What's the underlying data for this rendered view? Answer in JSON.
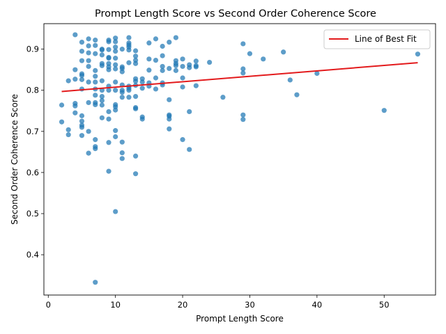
{
  "chart_data": {
    "type": "scatter",
    "title": "Prompt Length Score vs Second Order Coherence Score",
    "xlabel": "Prompt Length Score",
    "ylabel": "Second Order Coherence Score",
    "xlim": [
      -0.65,
      57.65
    ],
    "ylim": [
      0.302,
      0.962
    ],
    "xticks": [
      0,
      10,
      20,
      30,
      40,
      50
    ],
    "yticks": [
      0.4,
      0.5,
      0.6,
      0.7,
      0.8,
      0.9
    ],
    "grid": false,
    "legend_position": "top-right",
    "colors": {
      "points": "#1f77b4",
      "fit_line": "#e31a1c"
    },
    "series": [
      {
        "points": [
          [
            2,
            0.764
          ],
          [
            2,
            0.723
          ],
          [
            3,
            0.823
          ],
          [
            3,
            0.704
          ],
          [
            3,
            0.692
          ],
          [
            4,
            0.935
          ],
          [
            4,
            0.85
          ],
          [
            4,
            0.827
          ],
          [
            4,
            0.768
          ],
          [
            4,
            0.762
          ],
          [
            4,
            0.745
          ],
          [
            5,
            0.917
          ],
          [
            5,
            0.895
          ],
          [
            5,
            0.872
          ],
          [
            5,
            0.84
          ],
          [
            5,
            0.836
          ],
          [
            5,
            0.826
          ],
          [
            5,
            0.803
          ],
          [
            5,
            0.738
          ],
          [
            5,
            0.725
          ],
          [
            5,
            0.715
          ],
          [
            5,
            0.71
          ],
          [
            5,
            0.69
          ],
          [
            6,
            0.925
          ],
          [
            6,
            0.908
          ],
          [
            6,
            0.891
          ],
          [
            6,
            0.872
          ],
          [
            6,
            0.858
          ],
          [
            6,
            0.82
          ],
          [
            6,
            0.77
          ],
          [
            6,
            0.7
          ],
          [
            6,
            0.647
          ],
          [
            7,
            0.922
          ],
          [
            7,
            0.909
          ],
          [
            7,
            0.889
          ],
          [
            7,
            0.848
          ],
          [
            7,
            0.834
          ],
          [
            7,
            0.82
          ],
          [
            7,
            0.803
          ],
          [
            7,
            0.788
          ],
          [
            7,
            0.77
          ],
          [
            7,
            0.765
          ],
          [
            7,
            0.68
          ],
          [
            7,
            0.663
          ],
          [
            7,
            0.658
          ],
          [
            7,
            0.333
          ],
          [
            8,
            0.9
          ],
          [
            8,
            0.898
          ],
          [
            8,
            0.886
          ],
          [
            8,
            0.865
          ],
          [
            8,
            0.86
          ],
          [
            8,
            0.823
          ],
          [
            8,
            0.8
          ],
          [
            8,
            0.785
          ],
          [
            8,
            0.775
          ],
          [
            8,
            0.764
          ],
          [
            8,
            0.733
          ],
          [
            9,
            0.922
          ],
          [
            9,
            0.918
          ],
          [
            9,
            0.899
          ],
          [
            9,
            0.88
          ],
          [
            9,
            0.878
          ],
          [
            9,
            0.865
          ],
          [
            9,
            0.857
          ],
          [
            9,
            0.85
          ],
          [
            9,
            0.81
          ],
          [
            9,
            0.8
          ],
          [
            9,
            0.748
          ],
          [
            9,
            0.73
          ],
          [
            9,
            0.673
          ],
          [
            9,
            0.603
          ],
          [
            10,
            0.927
          ],
          [
            10,
            0.918
          ],
          [
            10,
            0.905
          ],
          [
            10,
            0.895
          ],
          [
            10,
            0.878
          ],
          [
            10,
            0.862
          ],
          [
            10,
            0.852
          ],
          [
            10,
            0.82
          ],
          [
            10,
            0.8
          ],
          [
            10,
            0.765
          ],
          [
            10,
            0.76
          ],
          [
            10,
            0.752
          ],
          [
            10,
            0.702
          ],
          [
            10,
            0.687
          ],
          [
            10,
            0.505
          ],
          [
            11,
            0.9
          ],
          [
            11,
            0.857
          ],
          [
            11,
            0.853
          ],
          [
            11,
            0.845
          ],
          [
            11,
            0.813
          ],
          [
            11,
            0.8
          ],
          [
            11,
            0.795
          ],
          [
            11,
            0.783
          ],
          [
            11,
            0.674
          ],
          [
            11,
            0.648
          ],
          [
            11,
            0.634
          ],
          [
            12,
            0.928
          ],
          [
            12,
            0.915
          ],
          [
            12,
            0.91
          ],
          [
            12,
            0.905
          ],
          [
            12,
            0.898
          ],
          [
            12,
            0.867
          ],
          [
            12,
            0.81
          ],
          [
            12,
            0.805
          ],
          [
            12,
            0.8
          ],
          [
            12,
            0.783
          ],
          [
            13,
            0.896
          ],
          [
            13,
            0.883
          ],
          [
            13,
            0.873
          ],
          [
            13,
            0.865
          ],
          [
            13,
            0.828
          ],
          [
            13,
            0.822
          ],
          [
            13,
            0.812
          ],
          [
            13,
            0.785
          ],
          [
            13,
            0.758
          ],
          [
            13,
            0.755
          ],
          [
            13,
            0.64
          ],
          [
            13,
            0.597
          ],
          [
            14,
            0.828
          ],
          [
            14,
            0.82
          ],
          [
            14,
            0.805
          ],
          [
            14,
            0.735
          ],
          [
            14,
            0.73
          ],
          [
            15,
            0.915
          ],
          [
            15,
            0.876
          ],
          [
            15,
            0.849
          ],
          [
            15,
            0.818
          ],
          [
            15,
            0.81
          ],
          [
            16,
            0.925
          ],
          [
            16,
            0.873
          ],
          [
            16,
            0.83
          ],
          [
            16,
            0.803
          ],
          [
            17,
            0.907
          ],
          [
            17,
            0.884
          ],
          [
            17,
            0.858
          ],
          [
            17,
            0.848
          ],
          [
            17,
            0.818
          ],
          [
            17,
            0.813
          ],
          [
            18,
            0.917
          ],
          [
            18,
            0.853
          ],
          [
            18,
            0.777
          ],
          [
            18,
            0.74
          ],
          [
            18,
            0.737
          ],
          [
            18,
            0.73
          ],
          [
            18,
            0.706
          ],
          [
            19,
            0.928
          ],
          [
            19,
            0.872
          ],
          [
            19,
            0.865
          ],
          [
            19,
            0.86
          ],
          [
            19,
            0.848
          ],
          [
            20,
            0.876
          ],
          [
            20,
            0.858
          ],
          [
            20,
            0.83
          ],
          [
            20,
            0.808
          ],
          [
            20,
            0.68
          ],
          [
            21,
            0.862
          ],
          [
            21,
            0.855
          ],
          [
            21,
            0.748
          ],
          [
            21,
            0.656
          ],
          [
            22,
            0.871
          ],
          [
            22,
            0.86
          ],
          [
            22,
            0.857
          ],
          [
            22,
            0.811
          ],
          [
            24,
            0.868
          ],
          [
            26,
            0.783
          ],
          [
            29,
            0.913
          ],
          [
            29,
            0.852
          ],
          [
            29,
            0.842
          ],
          [
            29,
            0.74
          ],
          [
            29,
            0.729
          ],
          [
            30,
            0.889
          ],
          [
            32,
            0.876
          ],
          [
            35,
            0.893
          ],
          [
            36,
            0.825
          ],
          [
            37,
            0.789
          ],
          [
            40,
            0.841
          ],
          [
            50,
            0.751
          ],
          [
            55,
            0.888
          ]
        ]
      }
    ],
    "fit_line": {
      "name": "Line of Best Fit",
      "x": [
        2,
        55
      ],
      "y": [
        0.797,
        0.867
      ]
    }
  }
}
